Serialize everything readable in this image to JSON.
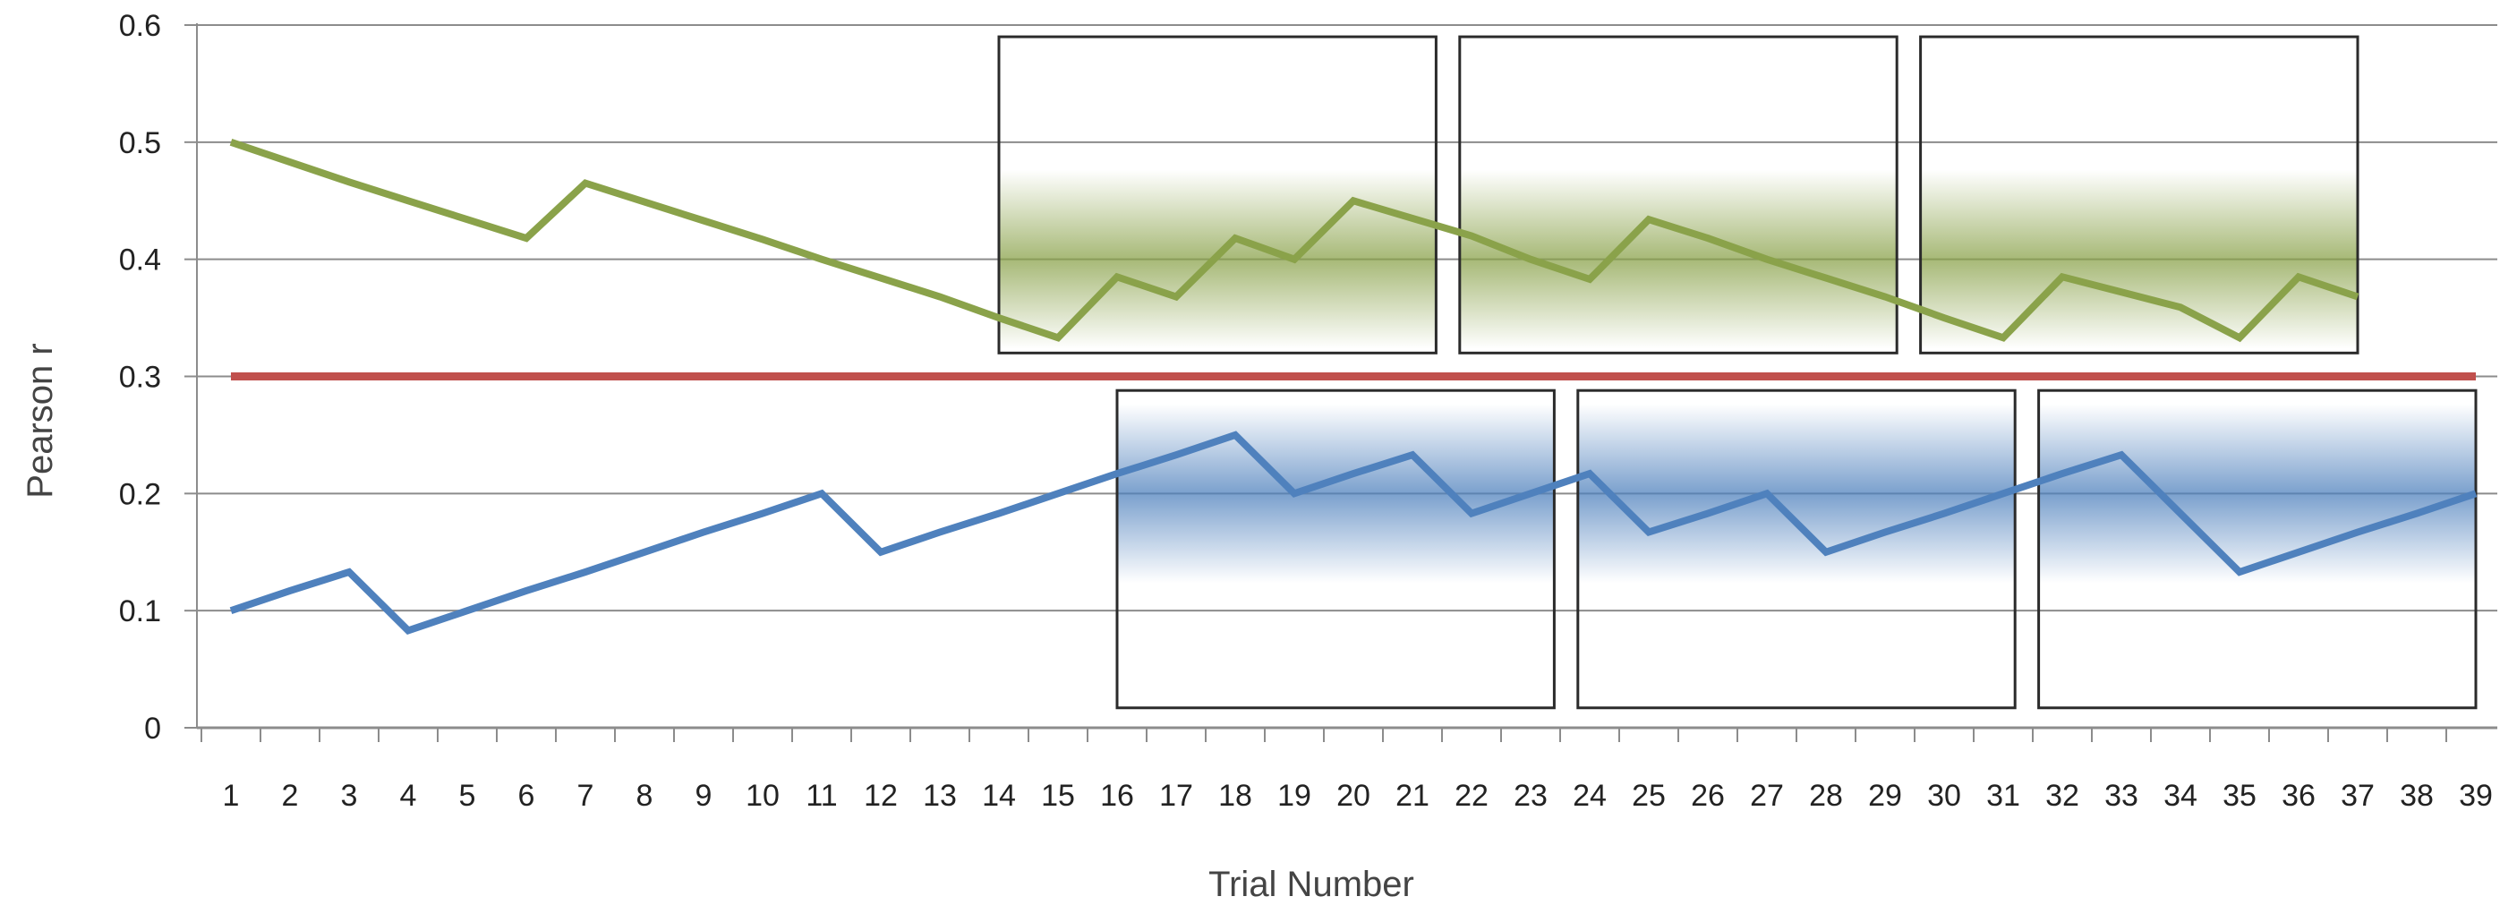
{
  "chart_data": {
    "type": "line",
    "xlabel": "Trial Number",
    "ylabel": "Pearson r",
    "ylim": [
      0,
      0.6
    ],
    "yticks": [
      "0",
      "0.1",
      "0.2",
      "0.3",
      "0.4",
      "0.5",
      "0.6"
    ],
    "x": [
      1,
      2,
      3,
      4,
      5,
      6,
      7,
      8,
      9,
      10,
      11,
      12,
      13,
      14,
      15,
      16,
      17,
      18,
      19,
      20,
      21,
      22,
      23,
      24,
      25,
      26,
      27,
      28,
      29,
      30,
      31,
      32,
      33,
      34,
      35,
      36,
      37,
      38,
      39
    ],
    "grid": "horizontal",
    "legend": "none",
    "series": [
      {
        "color": "#8aa24a",
        "values": [
          0.5,
          0.483,
          0.466,
          0.45,
          0.434,
          0.418,
          0.465,
          0.449,
          0.433,
          0.417,
          0.4,
          0.384,
          0.368,
          0.35,
          0.333,
          0.385,
          0.368,
          0.418,
          0.4,
          0.45,
          0.435,
          0.42,
          0.4,
          0.383,
          0.434,
          0.418,
          0.4,
          0.384,
          0.368,
          0.35,
          0.333,
          0.385,
          0.372,
          0.359,
          0.333,
          0.385,
          0.368,
          null,
          null
        ]
      },
      {
        "color": "#c0504d",
        "values": [
          0.3,
          0.3,
          0.3,
          0.3,
          0.3,
          0.3,
          0.3,
          0.3,
          0.3,
          0.3,
          0.3,
          0.3,
          0.3,
          0.3,
          0.3,
          0.3,
          0.3,
          0.3,
          0.3,
          0.3,
          0.3,
          0.3,
          0.3,
          0.3,
          0.3,
          0.3,
          0.3,
          0.3,
          0.3,
          0.3,
          0.3,
          0.3,
          0.3,
          0.3,
          0.3,
          0.3,
          0.3,
          0.3,
          0.3
        ]
      },
      {
        "color": "#4f81bd",
        "values": [
          0.1,
          0.117,
          0.133,
          0.083,
          0.1,
          0.117,
          0.133,
          0.15,
          0.167,
          0.183,
          0.2,
          0.15,
          0.167,
          0.183,
          0.2,
          0.217,
          0.233,
          0.25,
          0.2,
          0.217,
          0.233,
          0.183,
          0.2,
          0.217,
          0.167,
          0.183,
          0.2,
          0.15,
          0.167,
          0.183,
          0.2,
          0.217,
          0.233,
          0.183,
          0.133,
          0.15,
          0.167,
          0.183,
          0.2
        ]
      }
    ],
    "highlight_boxes": [
      {
        "x_start": 14.0,
        "x_end": 21.4,
        "y_start": 0.32,
        "y_end": 0.59,
        "band_center": 0.4,
        "color": "#8aa24a"
      },
      {
        "x_start": 21.8,
        "x_end": 29.2,
        "y_start": 0.32,
        "y_end": 0.59,
        "band_center": 0.4,
        "color": "#8aa24a"
      },
      {
        "x_start": 29.6,
        "x_end": 37.0,
        "y_start": 0.32,
        "y_end": 0.59,
        "band_center": 0.4,
        "color": "#8aa24a"
      },
      {
        "x_start": 16.0,
        "x_end": 23.4,
        "y_start": 0.017,
        "y_end": 0.288,
        "band_center": 0.2,
        "color": "#4f81bd"
      },
      {
        "x_start": 23.8,
        "x_end": 31.2,
        "y_start": 0.017,
        "y_end": 0.288,
        "band_center": 0.2,
        "color": "#4f81bd"
      },
      {
        "x_start": 31.6,
        "x_end": 39.0,
        "y_start": 0.017,
        "y_end": 0.288,
        "band_center": 0.2,
        "color": "#4f81bd"
      }
    ]
  }
}
